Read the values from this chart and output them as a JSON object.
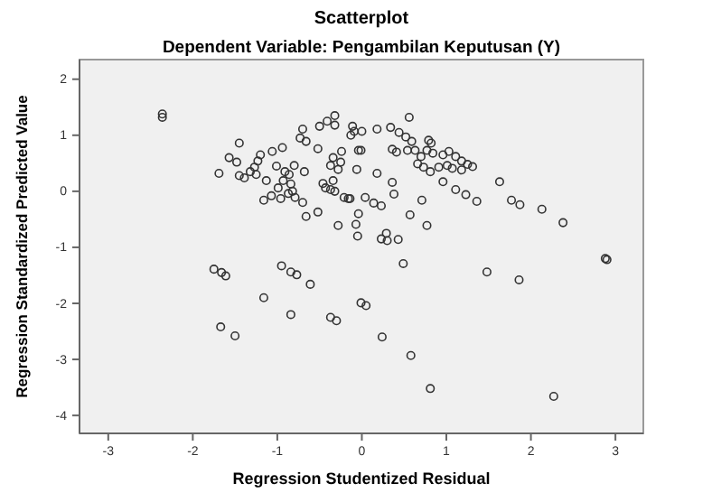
{
  "chart_data": {
    "type": "scatter",
    "title": "Scatterplot",
    "subtitle": "Dependent Variable: Pengambilan Keputusan (Y)",
    "xlabel": "Regression Studentized Residual",
    "ylabel": "Regression Standardized Predicted Value",
    "xlim": [
      -3.34,
      3.33
    ],
    "ylim": [
      -4.32,
      2.35
    ],
    "xticks": [
      -3,
      -2,
      -1,
      0,
      1,
      2,
      3
    ],
    "yticks": [
      -4,
      -3,
      -2,
      -1,
      0,
      1,
      2
    ],
    "grid": false,
    "marker": "circle",
    "series": [
      {
        "color": "#333333",
        "x": [
          -2.36,
          -2.36,
          -1.45,
          -1.57,
          -1.48,
          -1.69,
          -1.45,
          -1.39,
          -1.32,
          -1.27,
          -1.23,
          -1.2,
          -1.25,
          -1.13,
          -1.06,
          -0.94,
          -1.01,
          -0.91,
          -0.8,
          -0.93,
          -0.86,
          -0.84,
          -0.99,
          -1.07,
          -1.16,
          -0.96,
          -0.87,
          -0.79,
          -0.7,
          -0.66,
          -0.52,
          -0.68,
          -0.73,
          -0.7,
          -0.66,
          -0.52,
          -0.5,
          -0.41,
          -0.32,
          -0.32,
          -0.37,
          -0.34,
          -0.25,
          -0.28,
          -0.24,
          -0.34,
          -0.46,
          -0.43,
          -0.37,
          -0.32,
          -0.21,
          -0.16,
          -0.28,
          -0.07,
          -0.05,
          -0.04,
          -0.09,
          -0.06,
          -0.01,
          -0.11,
          -0.82,
          0.0,
          -0.13,
          0.18,
          0.34,
          0.56,
          0.44,
          0.52,
          0.59,
          0.79,
          0.82,
          0.36,
          0.41,
          -0.04,
          0.54,
          0.63,
          0.7,
          0.77,
          0.84,
          0.66,
          0.73,
          0.81,
          0.91,
          0.96,
          1.03,
          1.11,
          1.01,
          1.07,
          1.18,
          1.25,
          1.31,
          1.18,
          0.96,
          1.11,
          1.23,
          1.36,
          1.63,
          1.77,
          1.87,
          2.13,
          2.38,
          0.36,
          0.38,
          0.71,
          0.57,
          0.77,
          0.18,
          -0.14,
          0.04,
          0.14,
          0.23,
          0.29,
          0.23,
          0.3,
          0.43,
          0.49,
          1.48,
          1.86,
          2.88,
          2.9,
          -1.75,
          -1.66,
          -1.61,
          -0.95,
          -0.84,
          -0.77,
          -0.61,
          -1.16,
          -0.84,
          -1.67,
          -1.5,
          -0.37,
          -0.3,
          -0.01,
          0.05,
          0.24,
          0.58,
          0.81,
          2.27
        ],
        "values": [
          1.38,
          1.32,
          0.86,
          0.6,
          0.52,
          0.32,
          0.28,
          0.24,
          0.35,
          0.43,
          0.54,
          0.65,
          0.3,
          0.19,
          0.71,
          0.78,
          0.45,
          0.35,
          0.46,
          0.19,
          0.3,
          0.13,
          0.06,
          -0.08,
          -0.16,
          -0.13,
          -0.04,
          -0.11,
          -0.2,
          -0.45,
          -0.37,
          0.35,
          0.95,
          1.11,
          0.89,
          0.76,
          1.16,
          1.25,
          1.35,
          1.18,
          0.46,
          0.6,
          0.52,
          0.39,
          0.71,
          0.19,
          0.14,
          0.06,
          0.03,
          0.0,
          -0.11,
          -0.13,
          -0.61,
          -0.59,
          -0.8,
          -0.4,
          1.07,
          0.39,
          0.73,
          1.16,
          0.0,
          1.07,
          1.0,
          1.11,
          1.14,
          1.32,
          1.05,
          0.97,
          0.89,
          0.91,
          0.86,
          0.75,
          0.7,
          0.73,
          0.73,
          0.73,
          0.62,
          0.73,
          0.68,
          0.49,
          0.43,
          0.35,
          0.43,
          0.65,
          0.71,
          0.62,
          0.46,
          0.41,
          0.54,
          0.48,
          0.44,
          0.38,
          0.17,
          0.03,
          -0.06,
          -0.18,
          0.17,
          -0.16,
          -0.24,
          -0.32,
          -0.56,
          0.16,
          -0.05,
          -0.16,
          -0.42,
          -0.61,
          0.32,
          -0.13,
          -0.11,
          -0.21,
          -0.26,
          -0.75,
          -0.85,
          -0.88,
          -0.86,
          -1.29,
          -1.44,
          -1.58,
          -1.2,
          -1.22,
          -1.39,
          -1.45,
          -1.51,
          -1.33,
          -1.44,
          -1.49,
          -1.66,
          -1.9,
          -2.2,
          -2.42,
          -2.58,
          -2.25,
          -2.31,
          -1.99,
          -2.04,
          -2.6,
          -2.93,
          -3.52,
          -3.66
        ]
      }
    ]
  }
}
